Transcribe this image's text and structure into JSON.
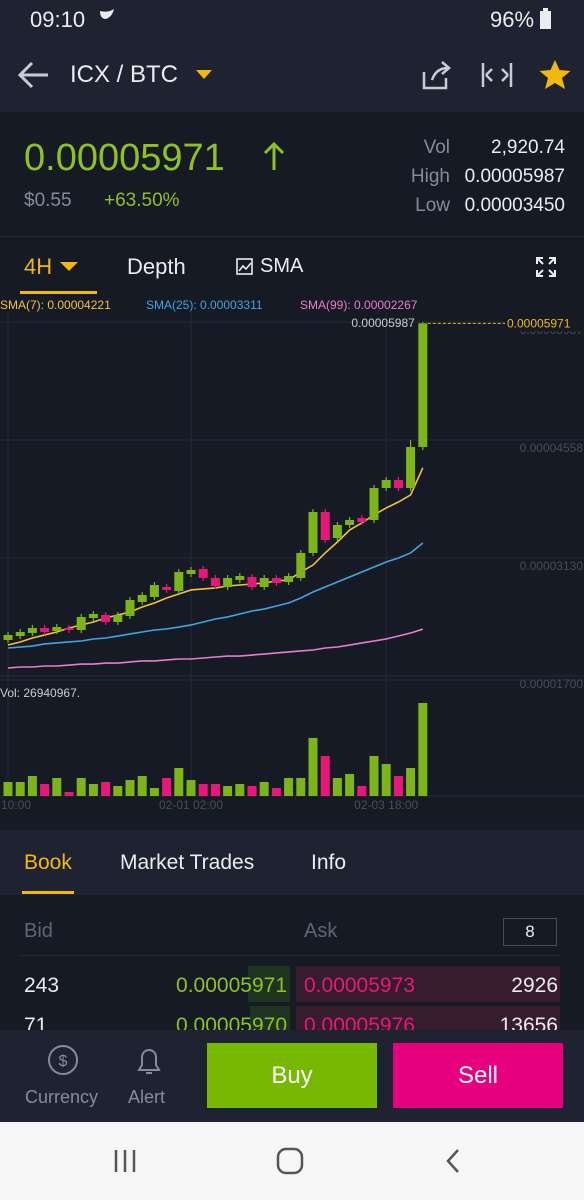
{
  "status_bar": {
    "time": "09:10",
    "battery": "96%"
  },
  "header": {
    "pair": "ICX / BTC"
  },
  "price": {
    "last": "0.00005971",
    "usd": "$0.55",
    "change": "+63.50%"
  },
  "stats": [
    {
      "label": "Vol",
      "value": "2,920.74"
    },
    {
      "label": "High",
      "value": "0.00005987"
    },
    {
      "label": "Low",
      "value": "0.00003450"
    }
  ],
  "tabs": [
    "4H",
    "Depth",
    "SMA"
  ],
  "chart_data": {
    "type": "candlestick",
    "grid": true,
    "up_color": "#7cb518",
    "down_color": "#e8187a",
    "ylim": [
      1.7e-05,
      5.987e-05
    ],
    "yticks": [
      {
        "value": 5.987e-05,
        "label": "0.00005987"
      },
      {
        "value": 4.558e-05,
        "label": "0.00004558"
      },
      {
        "value": 3.13e-05,
        "label": "0.00003130"
      },
      {
        "value": 1.7e-05,
        "label": "0.00001700"
      }
    ],
    "categories": [
      "10:00",
      null,
      null,
      null,
      null,
      null,
      null,
      null,
      null,
      null,
      null,
      null,
      null,
      null,
      null,
      "02-01 02:00",
      null,
      null,
      null,
      null,
      null,
      null,
      null,
      null,
      null,
      null,
      null,
      null,
      null,
      null,
      null,
      "02-03 18:00",
      null,
      null,
      null
    ],
    "candles": [
      {
        "open": 2.136e-05,
        "high": 2.233e-05,
        "low": 2.1e-05,
        "close": 2.197e-05
      },
      {
        "open": 2.184e-05,
        "high": 2.269e-05,
        "low": 2.148e-05,
        "close": 2.233e-05
      },
      {
        "open": 2.221e-05,
        "high": 2.318e-05,
        "low": 2.184e-05,
        "close": 2.281e-05
      },
      {
        "open": 2.281e-05,
        "high": 2.318e-05,
        "low": 2.197e-05,
        "close": 2.233e-05
      },
      {
        "open": 2.245e-05,
        "high": 2.33e-05,
        "low": 2.209e-05,
        "close": 2.293e-05
      },
      {
        "open": 2.281e-05,
        "high": 2.318e-05,
        "low": 2.221e-05,
        "close": 2.257e-05
      },
      {
        "open": 2.257e-05,
        "high": 2.451e-05,
        "low": 2.221e-05,
        "close": 2.415e-05
      },
      {
        "open": 2.402e-05,
        "high": 2.487e-05,
        "low": 2.366e-05,
        "close": 2.451e-05
      },
      {
        "open": 2.439e-05,
        "high": 2.475e-05,
        "low": 2.318e-05,
        "close": 2.354e-05
      },
      {
        "open": 2.354e-05,
        "high": 2.475e-05,
        "low": 2.318e-05,
        "close": 2.439e-05
      },
      {
        "open": 2.427e-05,
        "high": 2.657e-05,
        "low": 2.39e-05,
        "close": 2.62e-05
      },
      {
        "open": 2.596e-05,
        "high": 2.717e-05,
        "low": 2.56e-05,
        "close": 2.681e-05
      },
      {
        "open": 2.657e-05,
        "high": 2.838e-05,
        "low": 2.62e-05,
        "close": 2.802e-05
      },
      {
        "open": 2.778e-05,
        "high": 2.814e-05,
        "low": 2.705e-05,
        "close": 2.742e-05
      },
      {
        "open": 2.729e-05,
        "high": 2.996e-05,
        "low": 2.693e-05,
        "close": 2.959e-05
      },
      {
        "open": 2.935e-05,
        "high": 3.02e-05,
        "low": 2.899e-05,
        "close": 2.984e-05
      },
      {
        "open": 2.996e-05,
        "high": 3.032e-05,
        "low": 2.851e-05,
        "close": 2.887e-05
      },
      {
        "open": 2.887e-05,
        "high": 2.923e-05,
        "low": 2.754e-05,
        "close": 2.79e-05
      },
      {
        "open": 2.778e-05,
        "high": 2.923e-05,
        "low": 2.742e-05,
        "close": 2.887e-05
      },
      {
        "open": 2.863e-05,
        "high": 2.947e-05,
        "low": 2.826e-05,
        "close": 2.911e-05
      },
      {
        "open": 2.899e-05,
        "high": 2.935e-05,
        "low": 2.742e-05,
        "close": 2.778e-05
      },
      {
        "open": 2.778e-05,
        "high": 2.923e-05,
        "low": 2.742e-05,
        "close": 2.887e-05
      },
      {
        "open": 2.887e-05,
        "high": 2.923e-05,
        "low": 2.79e-05,
        "close": 2.826e-05
      },
      {
        "open": 2.838e-05,
        "high": 2.947e-05,
        "low": 2.802e-05,
        "close": 2.911e-05
      },
      {
        "open": 2.887e-05,
        "high": 3.226e-05,
        "low": 2.851e-05,
        "close": 3.19e-05
      },
      {
        "open": 3.19e-05,
        "high": 3.722e-05,
        "low": 3.153e-05,
        "close": 3.686e-05
      },
      {
        "open": 3.686e-05,
        "high": 3.722e-05,
        "low": 3.311e-05,
        "close": 3.347e-05
      },
      {
        "open": 3.371e-05,
        "high": 3.565e-05,
        "low": 3.335e-05,
        "close": 3.529e-05
      },
      {
        "open": 3.529e-05,
        "high": 3.626e-05,
        "low": 3.492e-05,
        "close": 3.589e-05
      },
      {
        "open": 3.613e-05,
        "high": 3.65e-05,
        "low": 3.529e-05,
        "close": 3.565e-05
      },
      {
        "open": 3.589e-05,
        "high": 4.013e-05,
        "low": 3.553e-05,
        "close": 3.977e-05
      },
      {
        "open": 3.977e-05,
        "high": 4.11e-05,
        "low": 3.94e-05,
        "close": 4.074e-05
      },
      {
        "open": 4.074e-05,
        "high": 4.11e-05,
        "low": 3.94e-05,
        "close": 3.977e-05
      },
      {
        "open": 3.977e-05,
        "high": 4.558e-05,
        "low": 3.94e-05,
        "close": 4.473e-05
      },
      {
        "open": 4.473e-05,
        "high": 5.987e-05,
        "low": 4.437e-05,
        "close": 5.971e-05
      }
    ],
    "series": [
      {
        "name": "SMA(7): 0.00004221",
        "color": "#f0c23b",
        "values": [
          2.075e-05,
          2.112e-05,
          2.16e-05,
          2.197e-05,
          2.233e-05,
          2.281e-05,
          2.318e-05,
          2.354e-05,
          2.402e-05,
          2.439e-05,
          2.475e-05,
          2.536e-05,
          2.584e-05,
          2.645e-05,
          2.693e-05,
          2.742e-05,
          2.754e-05,
          2.766e-05,
          2.79e-05,
          2.802e-05,
          2.814e-05,
          2.826e-05,
          2.851e-05,
          2.863e-05,
          2.959e-05,
          3.044e-05,
          3.19e-05,
          3.323e-05,
          3.468e-05,
          3.553e-05,
          3.65e-05,
          3.735e-05,
          3.807e-05,
          3.892e-05,
          4.221e-05
        ]
      },
      {
        "name": "SMA(25): 0.00003311",
        "color": "#3ea6e0",
        "values": [
          2.039e-05,
          2.051e-05,
          2.063e-05,
          2.088e-05,
          2.1e-05,
          2.112e-05,
          2.124e-05,
          2.148e-05,
          2.16e-05,
          2.184e-05,
          2.209e-05,
          2.233e-05,
          2.257e-05,
          2.269e-05,
          2.293e-05,
          2.318e-05,
          2.354e-05,
          2.39e-05,
          2.415e-05,
          2.451e-05,
          2.487e-05,
          2.511e-05,
          2.548e-05,
          2.584e-05,
          2.645e-05,
          2.717e-05,
          2.778e-05,
          2.838e-05,
          2.899e-05,
          2.959e-05,
          3.02e-05,
          3.081e-05,
          3.129e-05,
          3.19e-05,
          3.311e-05
        ]
      },
      {
        "name": "SMA(99): 0.00002267",
        "color": "#ea7bd0",
        "values": [
          1.797e-05,
          1.809e-05,
          1.809e-05,
          1.821e-05,
          1.821e-05,
          1.833e-05,
          1.845e-05,
          1.845e-05,
          1.857e-05,
          1.857e-05,
          1.87e-05,
          1.882e-05,
          1.882e-05,
          1.894e-05,
          1.906e-05,
          1.906e-05,
          1.918e-05,
          1.93e-05,
          1.942e-05,
          1.942e-05,
          1.954e-05,
          1.966e-05,
          1.979e-05,
          1.991e-05,
          2.003e-05,
          2.015e-05,
          2.039e-05,
          2.051e-05,
          2.075e-05,
          2.1e-05,
          2.124e-05,
          2.148e-05,
          2.184e-05,
          2.221e-05,
          2.267e-05
        ]
      }
    ],
    "volume": {
      "label": "Vol: 26940967.",
      "values": [
        4060000,
        4060000,
        5800000,
        3480000,
        5220000,
        1160000,
        5220000,
        3480000,
        4060000,
        2900000,
        4640000,
        5800000,
        2320000,
        5220000,
        8120000,
        4640000,
        3480000,
        3480000,
        2900000,
        3480000,
        2900000,
        4060000,
        2320000,
        5220000,
        5220000,
        16820000,
        11600000,
        5220000,
        6380000,
        2900000,
        11600000,
        9280000,
        5800000,
        8120000,
        26940967
      ]
    }
  },
  "book_tabs": [
    "Book",
    "Market Trades",
    "Info"
  ],
  "book": {
    "bid": "Bid",
    "ask": "Ask",
    "depth": "8",
    "rows": [
      [
        "243",
        "0.00005971",
        "0.00005973",
        "2926"
      ],
      [
        "71",
        "0.00005970",
        "0.00005976",
        "13656"
      ]
    ]
  },
  "bottom": {
    "currency": "Currency",
    "alert": "Alert",
    "buy": "Buy",
    "sell": "Sell"
  }
}
